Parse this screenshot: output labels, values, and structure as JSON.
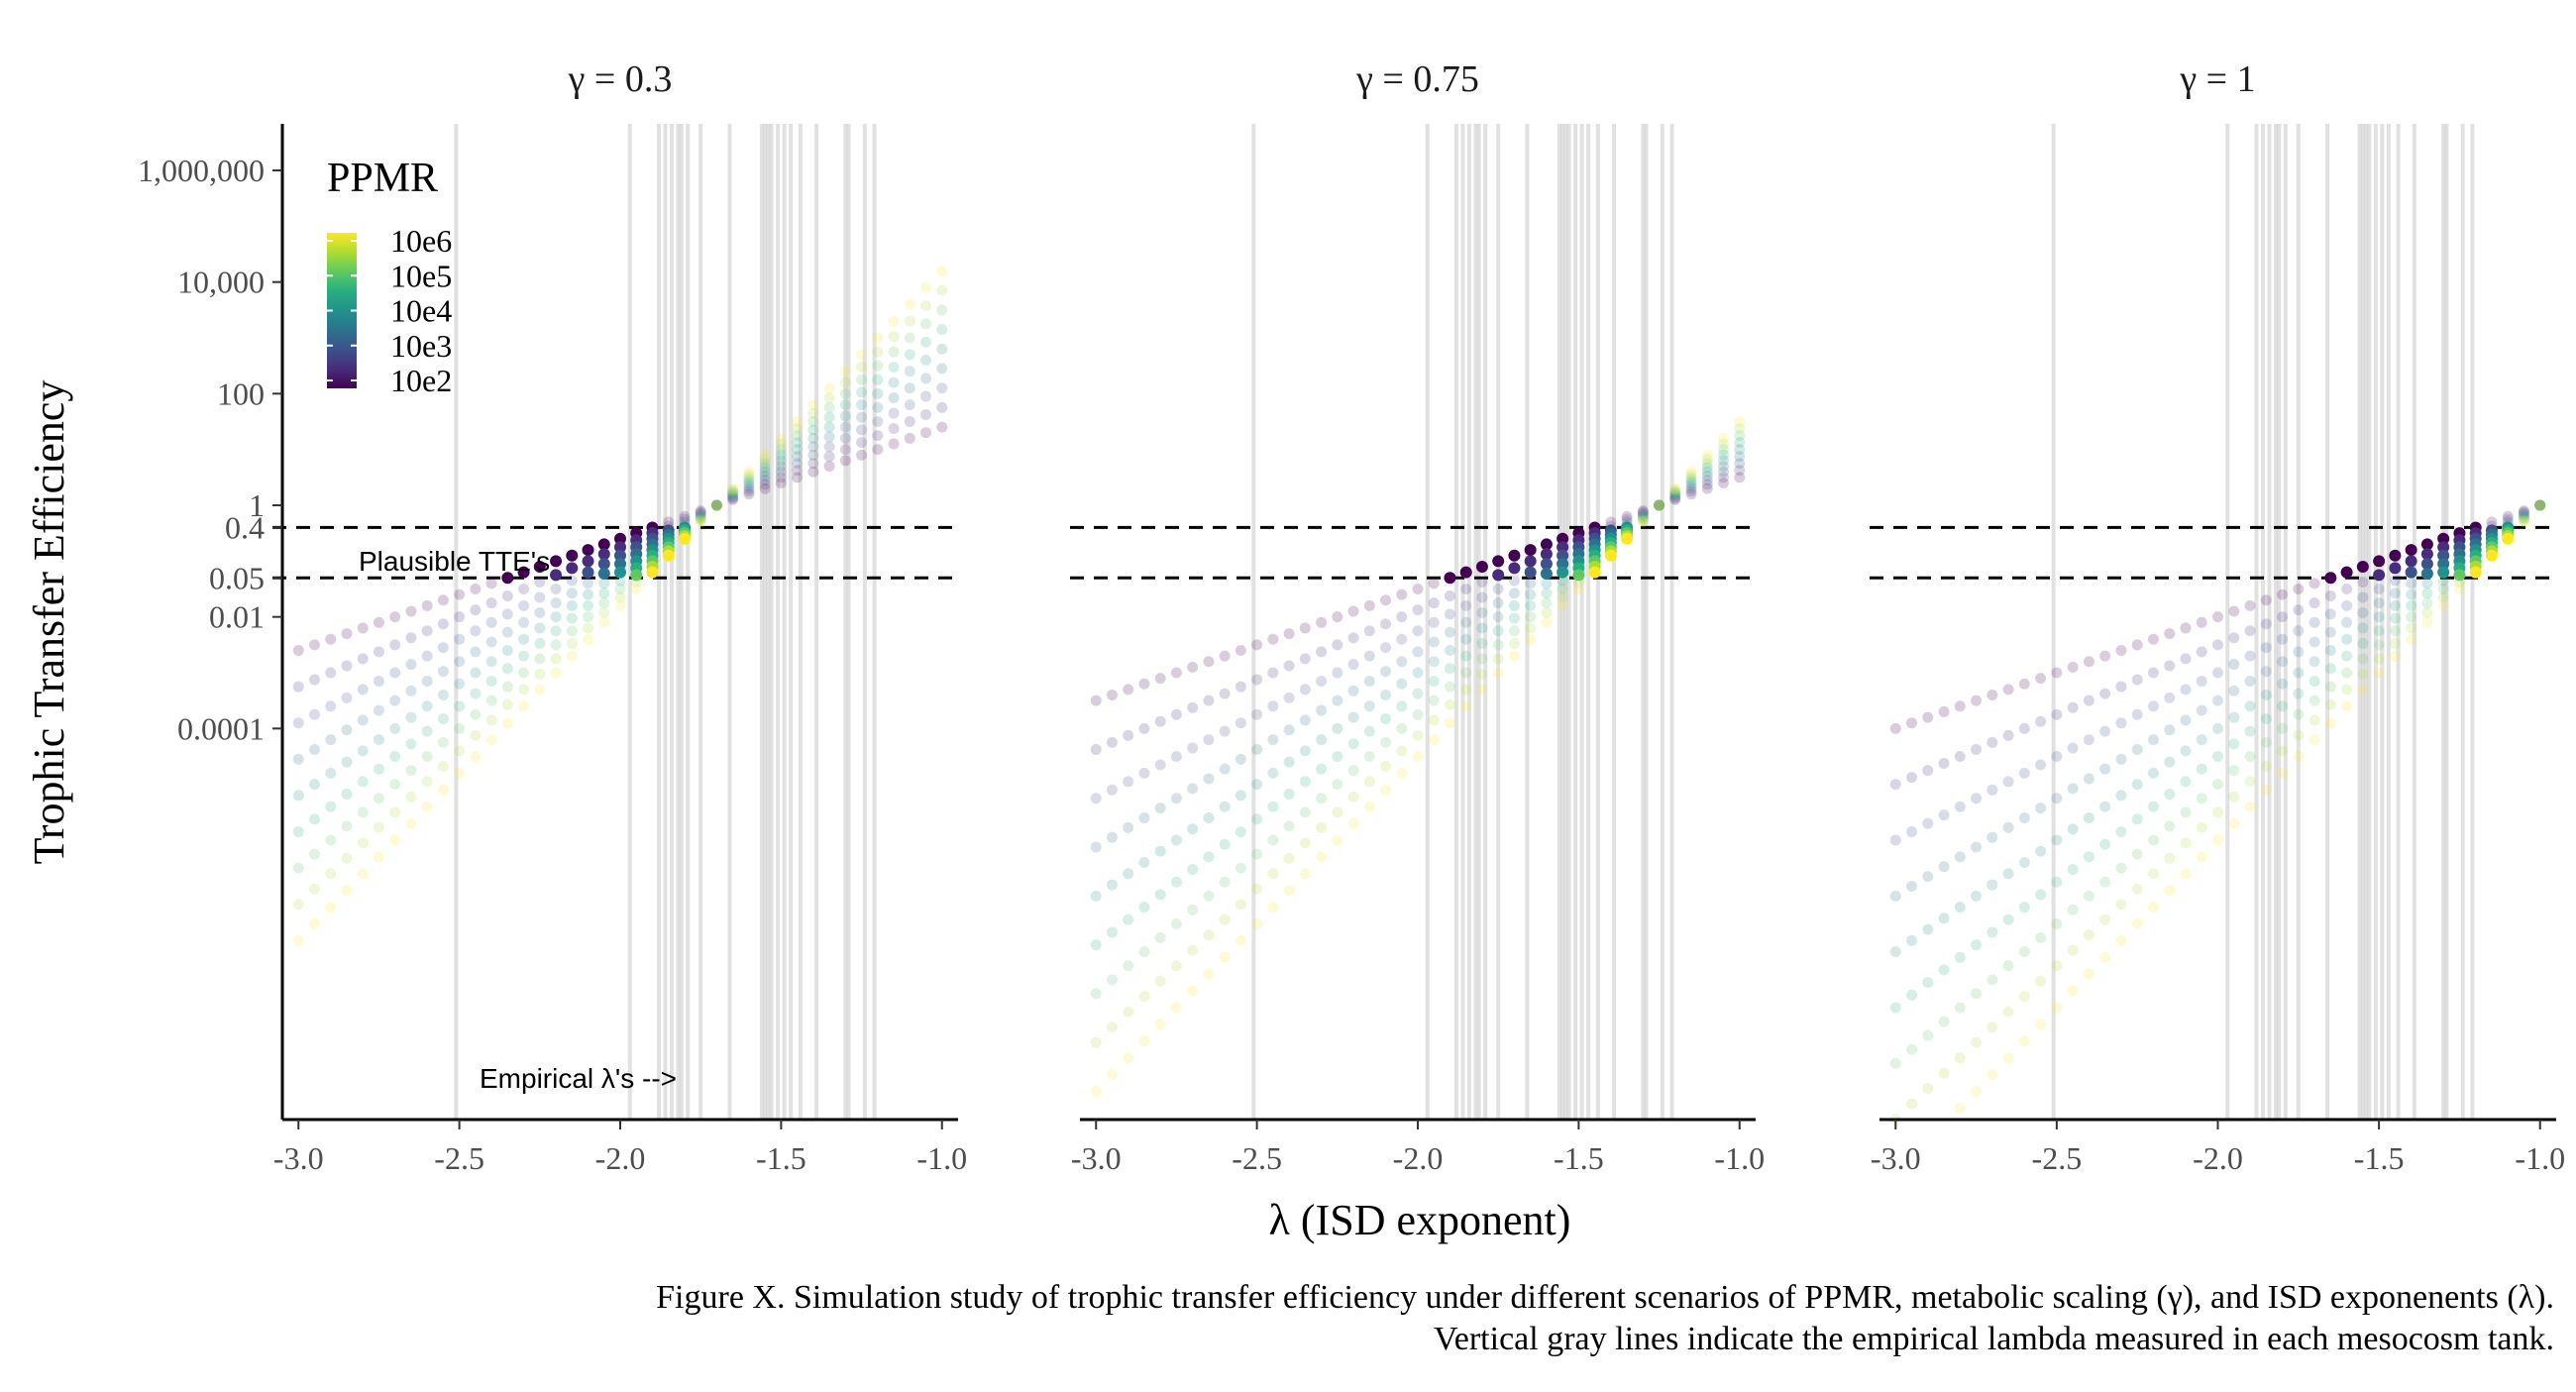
{
  "chart_data": {
    "type": "scatter",
    "facet_titles": [
      "γ = 0.3",
      "γ = 0.75",
      "γ = 1"
    ],
    "gammas": [
      0.3,
      0.75,
      1
    ],
    "xlabel": "λ (ISD exponent)",
    "ylabel": "Trophic Transfer Efficiency",
    "x_ticks": [
      -3.0,
      -2.5,
      -2.0,
      -1.5,
      -1.0
    ],
    "x_tick_labels": [
      "-3.0",
      "-2.5",
      "-2.0",
      "-1.5",
      "-1.0"
    ],
    "xlim": [
      -3.05,
      -0.95
    ],
    "y_scale": "log10",
    "ylim": [
      2.5e-08,
      4000000.0
    ],
    "y_ticks": [
      1000000,
      10000,
      100,
      1,
      0.4,
      0.05,
      0.01,
      0.0001
    ],
    "y_tick_labels": [
      "1,000,000",
      "10,000",
      "100",
      "1",
      "0.4",
      "0.05",
      "0.01",
      "0.0001"
    ],
    "hlines": [
      0.4,
      0.05
    ],
    "plausible_range": [
      0.05,
      0.4
    ],
    "annotations": {
      "plausible": "Plausible TTE's",
      "empirical": "Empirical λ's -->"
    },
    "empirical_lambdas": [
      -2.51,
      -1.97,
      -1.88,
      -1.86,
      -1.84,
      -1.82,
      -1.81,
      -1.79,
      -1.75,
      -1.66,
      -1.56,
      -1.55,
      -1.54,
      -1.53,
      -1.51,
      -1.49,
      -1.47,
      -1.44,
      -1.39,
      -1.3,
      -1.29,
      -1.24,
      -1.21
    ],
    "lambda_grid": {
      "start": -3.0,
      "end": -1.0,
      "step": 0.05
    },
    "log_ppmr_levels": [
      2,
      2.5,
      3,
      3.5,
      4,
      4.5,
      5,
      5.5,
      6
    ],
    "model": "log10(TTE) = (λ + 2 − γ)·log10(PPMR); points with 0.05 ≤ TTE ≤ 0.4 drawn opaque",
    "legend": {
      "title": "PPMR",
      "labels": [
        "10e6",
        "10e5",
        "10e4",
        "10e3",
        "10e2"
      ],
      "placement": "top-left inside first panel"
    },
    "colors": {
      "viridis": [
        "#440154",
        "#472d7b",
        "#3b528b",
        "#2c728e",
        "#21918c",
        "#28ae80",
        "#5ec962",
        "#addc30",
        "#fde725"
      ],
      "hline": "#000000",
      "vline": "#c8c8c8",
      "axis": "#000000"
    },
    "caption": [
      "Figure X. Simulation study of trophic transfer efficiency under different scenarios of PPMR, metabolic scaling (γ), and ISD exponenents (λ).",
      "Vertical gray lines indicate the empirical lambda measured in each mesocosm tank."
    ]
  }
}
